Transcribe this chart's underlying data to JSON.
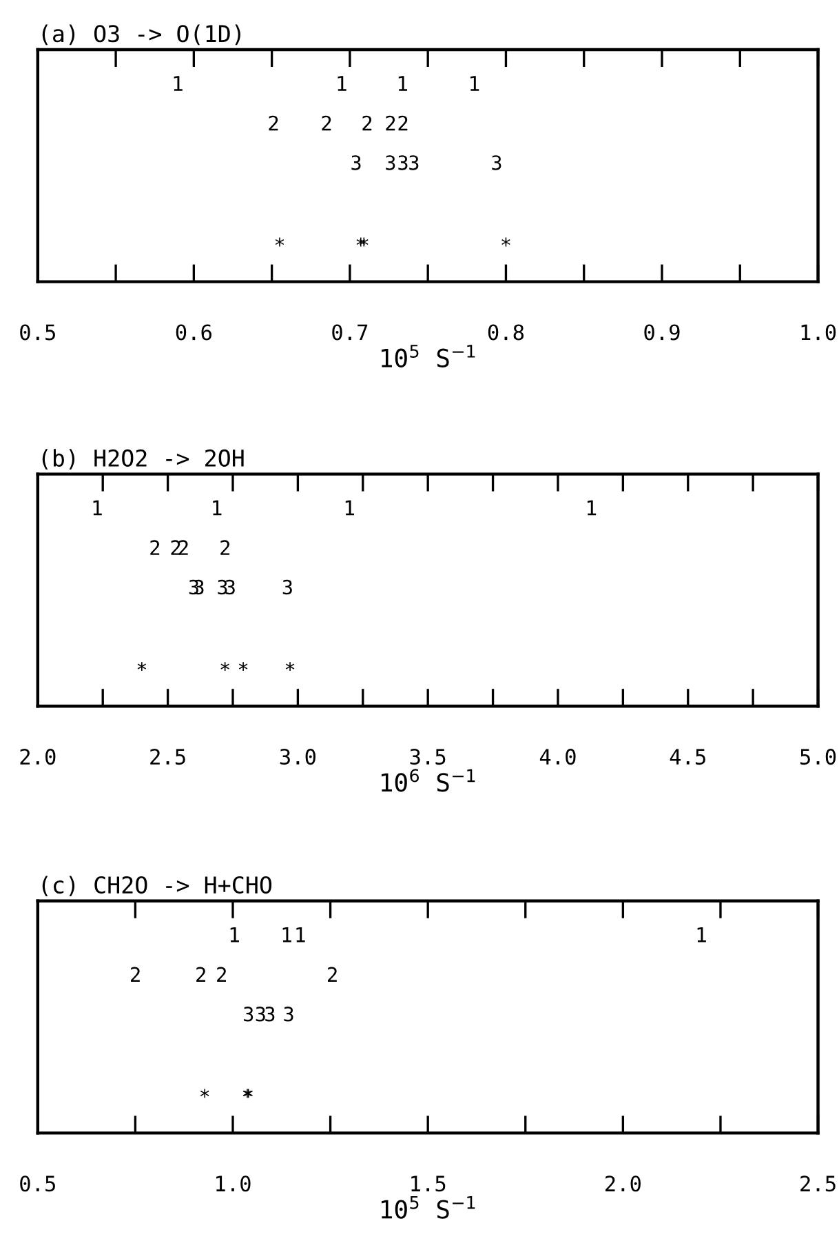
{
  "chart_data": [
    {
      "type": "scatter",
      "orientation": "horizontal",
      "title": "(a) O3 -> O(1D)",
      "xlabel": "10$^{5}$ S$^{−1}$",
      "tick_labels": "x",
      "xlim": [
        0.5,
        1.0
      ],
      "xticks": [
        0.5,
        {
          "value": 0.55,
          "label": null
        },
        0.6,
        {
          "value": 0.65,
          "label": null
        },
        0.7,
        {
          "value": 0.75,
          "label": null
        },
        0.8,
        {
          "value": 0.85,
          "label": null
        },
        0.9,
        {
          "value": 0.95,
          "label": null
        },
        {
          "value": 1.0,
          "label": "1.0"
        }
      ],
      "categories": [
        null,
        null,
        null,
        null,
        null
      ],
      "series": [
        {
          "color": "#000000",
          "values": [
            0.59,
            null,
            null,
            null,
            null
          ]
        },
        {
          "color": "#000000",
          "values": [
            0.695,
            null,
            null,
            null,
            null
          ]
        },
        {
          "color": "#000000",
          "values": [
            0.734,
            null,
            null,
            null,
            null
          ]
        },
        {
          "color": "#000000",
          "values": [
            0.78,
            null,
            null,
            null,
            null
          ]
        },
        {
          "color": "#000000",
          "values": [
            null,
            0.651,
            null,
            null,
            null
          ]
        },
        {
          "color": "#000000",
          "values": [
            null,
            0.685,
            null,
            null,
            null
          ]
        },
        {
          "color": "#000000",
          "values": [
            null,
            0.711,
            null,
            null,
            null
          ]
        },
        {
          "color": "#000000",
          "values": [
            null,
            0.726,
            null,
            null,
            null
          ]
        },
        {
          "color": "#000000",
          "values": [
            null,
            0.734,
            null,
            null,
            null
          ]
        },
        {
          "color": "#000000",
          "values": [
            null,
            null,
            0.704,
            null,
            null
          ]
        },
        {
          "color": "#000000",
          "values": [
            null,
            null,
            0.726,
            null,
            null
          ]
        },
        {
          "color": "#000000",
          "values": [
            null,
            null,
            0.734,
            null,
            null
          ]
        },
        {
          "color": "#000000",
          "values": [
            null,
            null,
            0.741,
            null,
            null
          ]
        },
        {
          "color": "#000000",
          "values": [
            null,
            null,
            0.794,
            null,
            null
          ]
        },
        {
          "marker": "star",
          "color": "#000000",
          "values": [
            null,
            null,
            null,
            null,
            0.655
          ]
        },
        {
          "marker": "star",
          "color": "#000000",
          "values": [
            null,
            null,
            null,
            null,
            0.707
          ]
        },
        {
          "marker": "star",
          "color": "#000000",
          "values": [
            null,
            null,
            null,
            null,
            0.709
          ]
        },
        {
          "marker": "star",
          "color": "#000000",
          "values": [
            null,
            null,
            null,
            null,
            0.8
          ]
        }
      ]
    },
    {
      "type": "scatter",
      "orientation": "horizontal",
      "title": "(b) H2O2 -> 2OH",
      "xlabel": "10$^{6}$ S$^{−1}$",
      "tick_labels": "x",
      "xlim": [
        2.0,
        5.0
      ],
      "xticks": [
        {
          "value": 2.0,
          "label": "2.0"
        },
        {
          "value": 2.25,
          "label": null
        },
        2.5,
        {
          "value": 2.75,
          "label": null
        },
        {
          "value": 3.0,
          "label": "3.0"
        },
        {
          "value": 3.25,
          "label": null
        },
        3.5,
        {
          "value": 3.75,
          "label": null
        },
        {
          "value": 4.0,
          "label": "4.0"
        },
        {
          "value": 4.25,
          "label": null
        },
        4.5,
        {
          "value": 4.75,
          "label": null
        },
        {
          "value": 5.0,
          "label": "5.0"
        }
      ],
      "categories": [
        null,
        null,
        null,
        null,
        null
      ],
      "series": [
        {
          "color": "#000000",
          "values": [
            2.23,
            null,
            null,
            null,
            null
          ]
        },
        {
          "color": "#000000",
          "values": [
            2.69,
            null,
            null,
            null,
            null
          ]
        },
        {
          "color": "#000000",
          "values": [
            3.2,
            null,
            null,
            null,
            null
          ]
        },
        {
          "color": "#000000",
          "values": [
            4.13,
            null,
            null,
            null,
            null
          ]
        },
        {
          "color": "#000000",
          "values": [
            null,
            2.45,
            null,
            null,
            null
          ]
        },
        {
          "color": "#000000",
          "values": [
            null,
            2.53,
            null,
            null,
            null
          ]
        },
        {
          "color": "#000000",
          "values": [
            null,
            2.56,
            null,
            null,
            null
          ]
        },
        {
          "color": "#000000",
          "values": [
            null,
            2.72,
            null,
            null,
            null
          ]
        },
        {
          "color": "#000000",
          "values": [
            null,
            null,
            2.6,
            null,
            null
          ]
        },
        {
          "color": "#000000",
          "values": [
            null,
            null,
            2.62,
            null,
            null
          ]
        },
        {
          "color": "#000000",
          "values": [
            null,
            null,
            2.71,
            null,
            null
          ]
        },
        {
          "color": "#000000",
          "values": [
            null,
            null,
            2.74,
            null,
            null
          ]
        },
        {
          "color": "#000000",
          "values": [
            null,
            null,
            2.96,
            null,
            null
          ]
        },
        {
          "marker": "star",
          "color": "#000000",
          "values": [
            null,
            null,
            null,
            null,
            2.4
          ]
        },
        {
          "marker": "star",
          "color": "#000000",
          "values": [
            null,
            null,
            null,
            null,
            2.72
          ]
        },
        {
          "marker": "star",
          "color": "#000000",
          "values": [
            null,
            null,
            null,
            null,
            2.79
          ]
        },
        {
          "marker": "star",
          "color": "#000000",
          "values": [
            null,
            null,
            null,
            null,
            2.97
          ]
        }
      ]
    },
    {
      "type": "scatter",
      "orientation": "horizontal",
      "title": "(c) CH2O -> H+CHO",
      "xlabel": "10$^{5}$ S$^{−1}$",
      "tick_labels": "x",
      "xlim": [
        0.5,
        2.5
      ],
      "xticks": [
        0.5,
        {
          "value": 0.75,
          "label": null
        },
        {
          "value": 1.0,
          "label": "1.0"
        },
        {
          "value": 1.25,
          "label": null
        },
        1.5,
        {
          "value": 1.75,
          "label": null
        },
        {
          "value": 2.0,
          "label": "2.0"
        },
        {
          "value": 2.25,
          "label": null
        },
        2.5
      ],
      "categories": [
        null,
        null,
        null,
        null,
        null
      ],
      "series": [
        {
          "color": "#000000",
          "values": [
            1.005,
            null,
            null,
            null,
            null
          ]
        },
        {
          "color": "#000000",
          "values": [
            1.139,
            null,
            null,
            null,
            null
          ]
        },
        {
          "color": "#000000",
          "values": [
            1.174,
            null,
            null,
            null,
            null
          ]
        },
        {
          "color": "#000000",
          "values": [
            2.202,
            null,
            null,
            null,
            null
          ]
        },
        {
          "color": "#000000",
          "values": [
            null,
            0.75,
            null,
            null,
            null
          ]
        },
        {
          "color": "#000000",
          "values": [
            null,
            0.918,
            null,
            null,
            null
          ]
        },
        {
          "color": "#000000",
          "values": [
            null,
            0.971,
            null,
            null,
            null
          ]
        },
        {
          "color": "#000000",
          "values": [
            null,
            1.255,
            null,
            null,
            null
          ]
        },
        {
          "color": "#000000",
          "values": [
            null,
            null,
            1.04,
            null,
            null
          ]
        },
        {
          "color": "#000000",
          "values": [
            null,
            null,
            1.071,
            null,
            null
          ]
        },
        {
          "color": "#000000",
          "values": [
            null,
            null,
            1.095,
            null,
            null
          ]
        },
        {
          "color": "#000000",
          "values": [
            null,
            null,
            1.143,
            null,
            null
          ]
        },
        {
          "marker": "star",
          "color": "#000000",
          "values": [
            null,
            null,
            null,
            null,
            0.928
          ]
        },
        {
          "marker": "star",
          "color": "#000000",
          "values": [
            null,
            null,
            null,
            null,
            1.037
          ]
        },
        {
          "marker": "star",
          "color": "#000000",
          "values": [
            null,
            null,
            null,
            null,
            1.04
          ]
        }
      ]
    }
  ]
}
